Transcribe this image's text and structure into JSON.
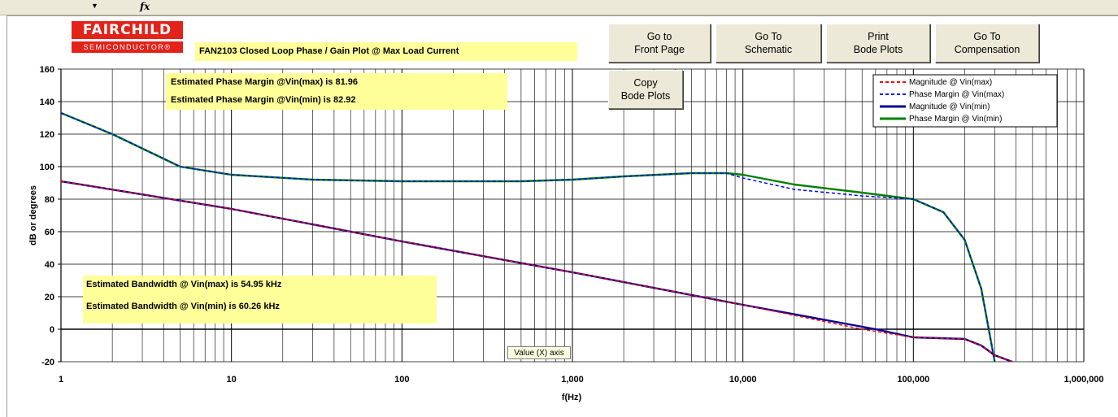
{
  "toolbar": {
    "dropdown_icon": "dropdown-arrow",
    "fx_label": "fx"
  },
  "logo": {
    "top_text": "FAIRCHILD",
    "bottom_text": "SEMICONDUCTOR®"
  },
  "buttons": {
    "front_page": "Go to\nFront Page",
    "schematic": "Go To\nSchematic",
    "print_bode": "Print\nBode Plots",
    "compensation": "Go To\nCompensation",
    "copy_bode": "Copy\nBode Plots"
  },
  "annotations": {
    "phase_margin_vmax": "Estimated Phase Margin @Vin(max) is  81.96",
    "phase_margin_vmin": "Estimated Phase Margin @Vin(min) is  82.92",
    "bandwidth_vmax": "Estimated Bandwidth @ Vin(max) is  54.95 kHz",
    "bandwidth_vmin": "Estimated Bandwidth @ Vin(min) is  60.26 kHz"
  },
  "tooltip": "Value (X) axis",
  "colors": {
    "mag_vmax": "#ff0000",
    "phase_vmax": "#0000ff",
    "mag_vmin": "#000099",
    "phase_vmin": "#008000",
    "note_bg": "#ffff99"
  },
  "chart_data": {
    "type": "line",
    "title": "FAN2103 Closed Loop Phase / Gain Plot @ Max Load Current",
    "xlabel": "f(Hz)",
    "ylabel": "dB or degrees",
    "xscale": "log",
    "xlim": [
      1,
      1000000
    ],
    "ylim": [
      -20,
      160
    ],
    "x_tick_values": [
      1,
      10,
      100,
      1000,
      10000,
      100000,
      1000000
    ],
    "x_tick_labels": [
      "1",
      "10",
      "100",
      "1,000",
      "10,000",
      "100,000",
      "1,000,000"
    ],
    "y_ticks": [
      -20,
      0,
      20,
      40,
      60,
      80,
      100,
      120,
      140,
      160
    ],
    "grid": true,
    "legend_position": "top-right",
    "series": [
      {
        "name": "Magnitude @ Vin(max)",
        "style": "dashed",
        "color": "#ff0000",
        "x": [
          1,
          10,
          100,
          1000,
          10000,
          50000,
          100000,
          200000,
          250000,
          300000,
          380000
        ],
        "y": [
          91,
          74,
          54,
          35,
          15,
          0,
          -5,
          -6,
          -10,
          -16,
          -20
        ]
      },
      {
        "name": "Phase Margin @ Vin(max)",
        "style": "dashed",
        "color": "#0000ff",
        "x": [
          1,
          2,
          5,
          10,
          30,
          100,
          500,
          1000,
          2000,
          5000,
          8000,
          10000,
          20000,
          50000,
          100000,
          150000,
          200000,
          250000,
          300000
        ],
        "y": [
          133,
          120,
          100,
          95,
          92,
          91,
          91,
          92,
          94,
          96,
          96,
          93,
          86,
          82,
          80,
          72,
          55,
          25,
          -20
        ]
      },
      {
        "name": "Magnitude @ Vin(min)",
        "style": "solid",
        "color": "#000099",
        "x": [
          1,
          10,
          100,
          1000,
          10000,
          60000,
          100000,
          200000,
          250000,
          300000,
          380000
        ],
        "y": [
          91,
          74,
          54,
          35,
          15,
          0,
          -5,
          -6,
          -10,
          -16,
          -20
        ]
      },
      {
        "name": "Phase Margin @ Vin(min)",
        "style": "solid",
        "color": "#008000",
        "x": [
          1,
          2,
          5,
          10,
          30,
          100,
          500,
          1000,
          2000,
          5000,
          8000,
          10000,
          20000,
          50000,
          100000,
          150000,
          200000,
          250000,
          300000
        ],
        "y": [
          133,
          120,
          100,
          95,
          92,
          91,
          91,
          92,
          94,
          96,
          96,
          95,
          89,
          84,
          80,
          72,
          55,
          25,
          -20
        ]
      }
    ]
  }
}
